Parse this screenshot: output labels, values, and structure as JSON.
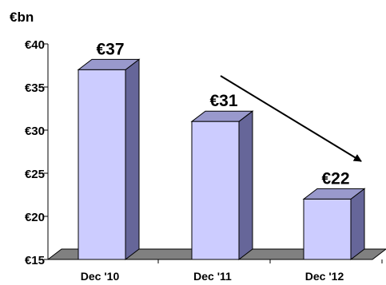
{
  "chart_data": {
    "type": "bar",
    "unit_label": "€bn",
    "categories": [
      "Dec '10",
      "Dec '11",
      "Dec '12"
    ],
    "values": [
      37,
      31,
      22
    ],
    "data_labels": [
      "€37",
      "€31",
      "€22"
    ],
    "ylim": [
      15,
      40
    ],
    "yticks": [
      15,
      20,
      25,
      30,
      35,
      40
    ],
    "ytick_labels": [
      "€15",
      "€20",
      "€25",
      "€30",
      "€35",
      "€40"
    ],
    "grid": false,
    "annotation": "trend arrow pointing down from Dec '11 to Dec '12",
    "colors": {
      "bar_front": "#ccccff",
      "bar_side": "#666699",
      "bar_top": "#9999cc",
      "floor": "#808080"
    }
  }
}
